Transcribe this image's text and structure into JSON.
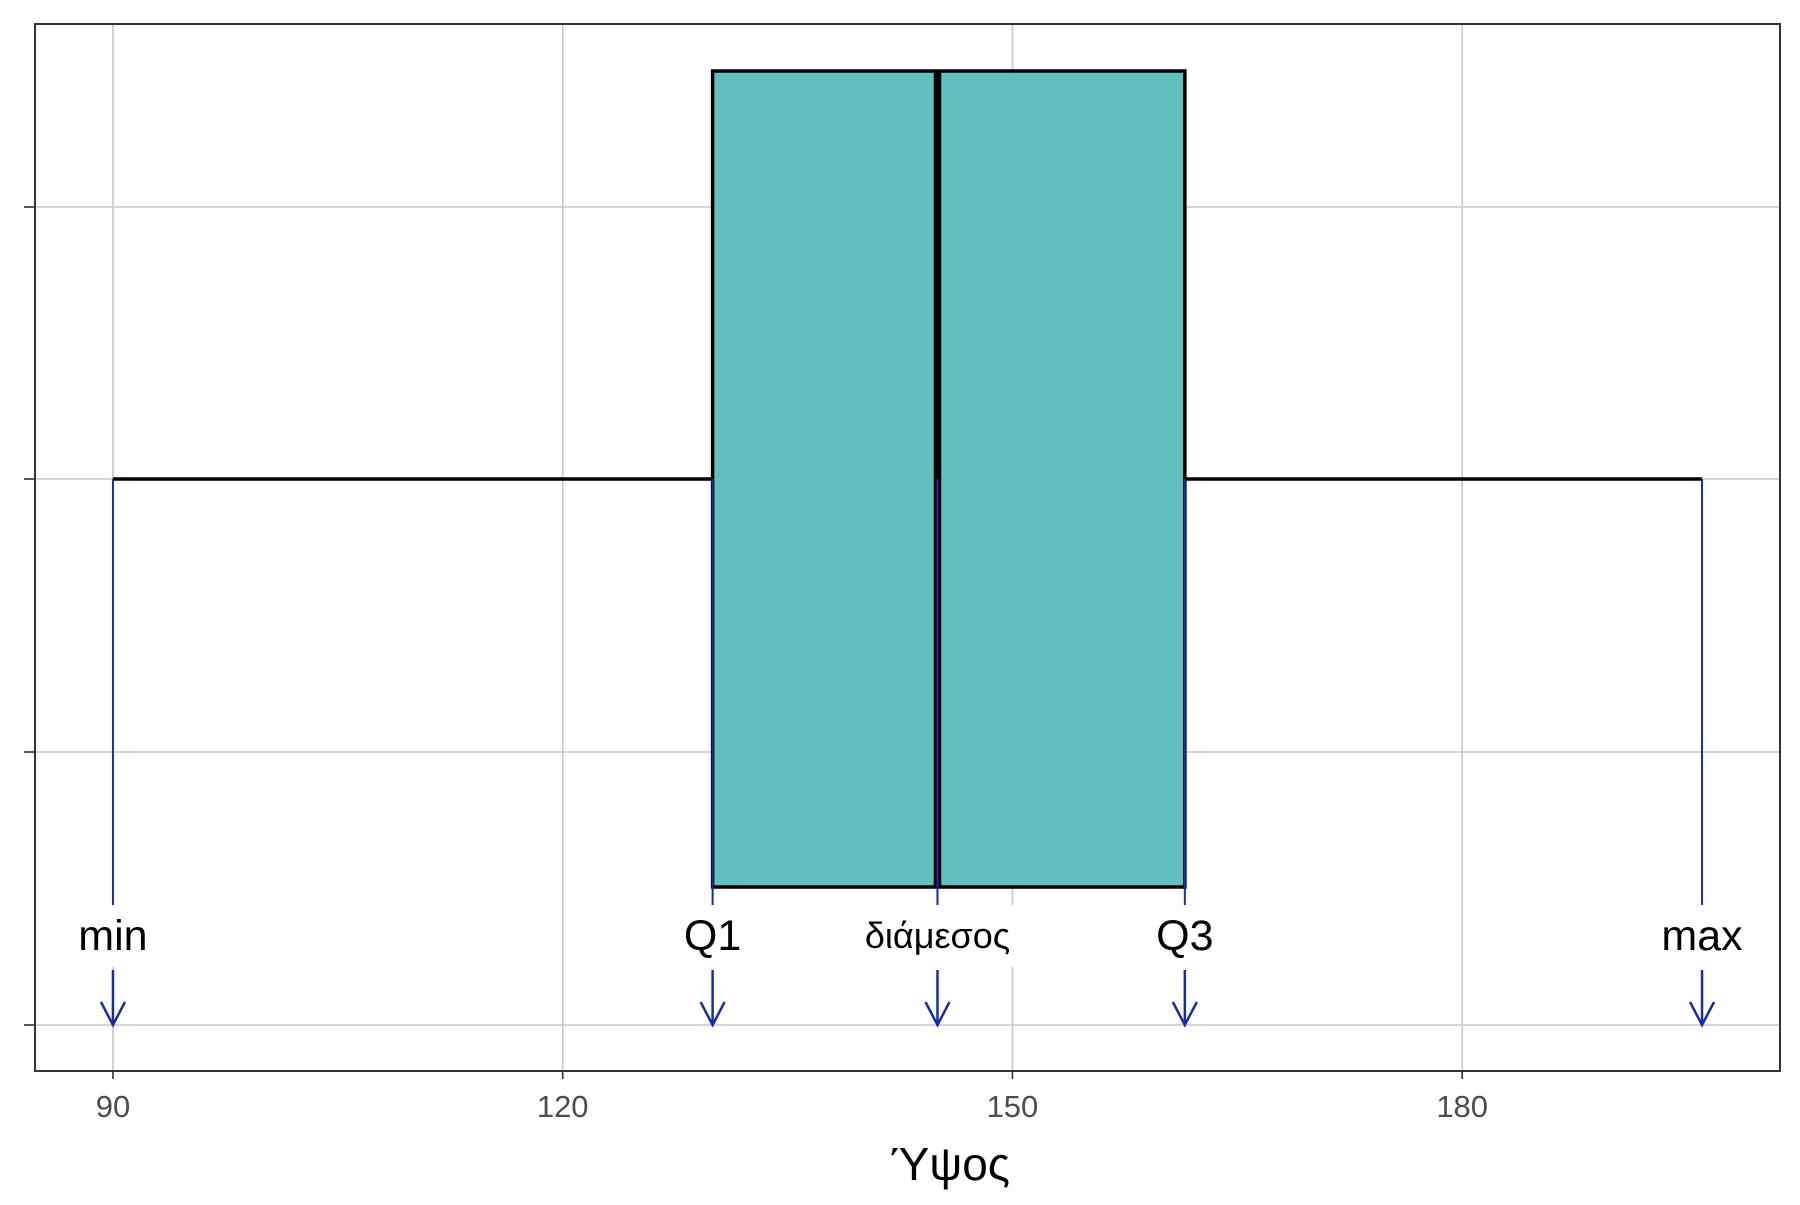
{
  "chart_data": {
    "type": "boxplot",
    "title": "",
    "xlabel": "Ύψος",
    "ylabel": "",
    "xlim": [
      84.8,
      201.2
    ],
    "x_ticks": [
      90,
      120,
      150,
      180
    ],
    "x_tick_labels": [
      "90",
      "120",
      "150",
      "180"
    ],
    "grid": true,
    "orientation": "horizontal",
    "box": {
      "min": 90,
      "q1": 130,
      "median": 145,
      "q3": 161.5,
      "max": 196,
      "fill": "#5bbebb",
      "outline": "#000000"
    },
    "annotations": [
      {
        "label": "min",
        "x": 90
      },
      {
        "label": "Q1",
        "x": 130
      },
      {
        "label": "διάμεσος",
        "x": 145
      },
      {
        "label": "Q3",
        "x": 161.5
      },
      {
        "label": "max",
        "x": 196
      }
    ],
    "colors": {
      "annotation_arrow": "#1a2ea0",
      "grid": "#c8c8c8",
      "panel_border": "#333333"
    }
  }
}
